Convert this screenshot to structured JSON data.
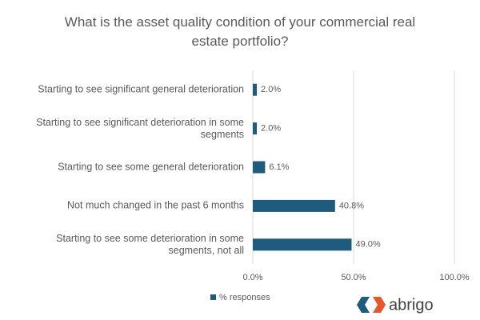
{
  "chart_data": {
    "type": "bar",
    "orientation": "horizontal",
    "title": "What is the asset quality condition of your commercial real estate portfolio?",
    "categories": [
      "Starting to see significant general deterioration",
      "Starting to see significant deterioration in some segments",
      "Starting to see some general deterioration",
      "Not much changed in the past 6 months",
      "Starting to see some deterioration in some segments, not all"
    ],
    "series": [
      {
        "name": "% responses",
        "color": "#1f5b7d",
        "values": [
          2.0,
          2.0,
          6.1,
          40.8,
          49.0
        ],
        "value_labels": [
          "2.0%",
          "2.0%",
          "6.1%",
          "40.8%",
          "49.0%"
        ]
      }
    ],
    "xlim": [
      0,
      100
    ],
    "xticks": [
      {
        "value": 0,
        "label": "0.0%"
      },
      {
        "value": 50,
        "label": "50.0%"
      },
      {
        "value": 100,
        "label": "100.0%"
      }
    ],
    "grid": true,
    "legend": "bottom",
    "logo": "abrigo"
  }
}
